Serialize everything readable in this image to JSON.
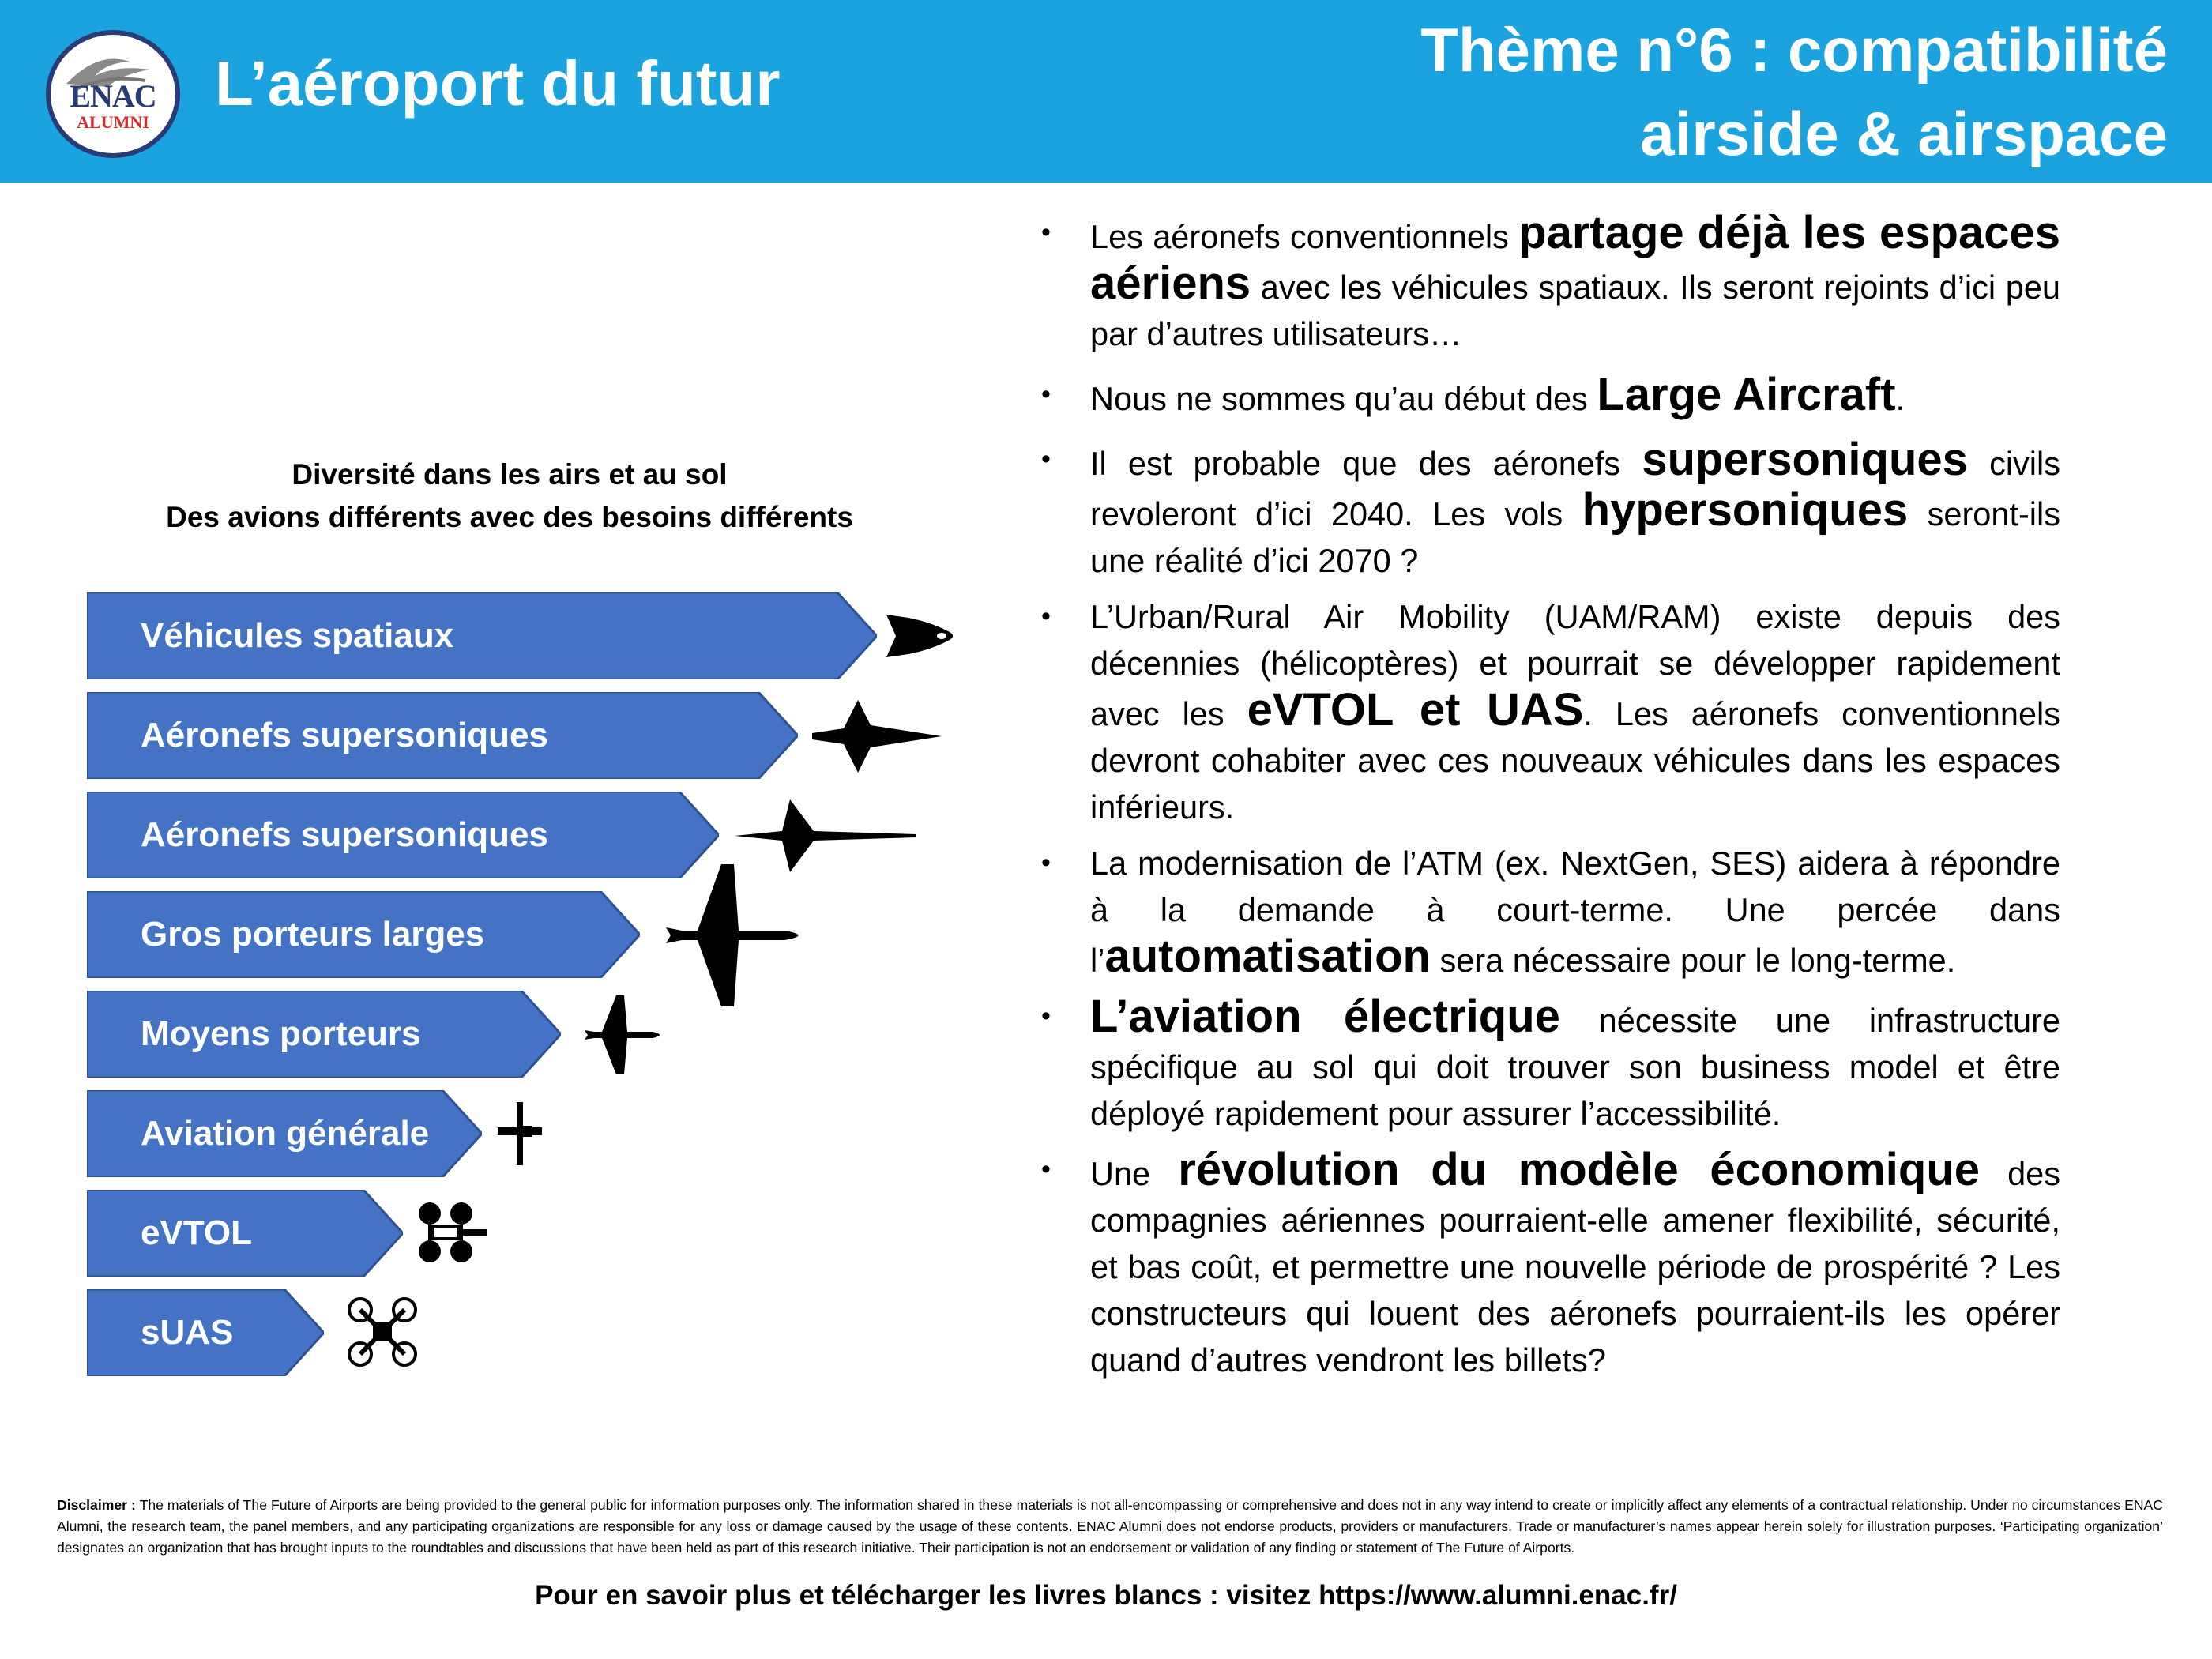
{
  "header": {
    "logo_main": "ENAC",
    "logo_sub": "ALUMNI",
    "site_title": "L’aéroport du futur",
    "theme_line1": "Thème n°6 : compatibilité",
    "theme_line2": "airside & airspace",
    "background_color": "#1aa3df"
  },
  "diagram": {
    "title_line1": "Diversité dans les airs et au sol",
    "title_line2": "Des avions différents avec des besoins différents",
    "arrow_color": "#4472c4",
    "items": [
      {
        "label": "Véhicules spatiaux",
        "icon": "space-shuttle-icon"
      },
      {
        "label": "Aéronefs supersoniques",
        "icon": "stealth-jet-icon"
      },
      {
        "label": "Aéronefs supersoniques",
        "icon": "concorde-icon"
      },
      {
        "label": "Gros porteurs larges",
        "icon": "widebody-airliner-icon"
      },
      {
        "label": "Moyens porteurs",
        "icon": "narrowbody-airliner-icon"
      },
      {
        "label": "Aviation générale",
        "icon": "light-aircraft-icon"
      },
      {
        "label": "eVTOL",
        "icon": "evtol-icon"
      },
      {
        "label": "sUAS",
        "icon": "drone-icon"
      }
    ]
  },
  "bullets": [
    {
      "before": "Les aéronefs conventionnels ",
      "bold": "partage déjà les espaces aériens",
      "after": " avec les véhicules spatiaux. Ils seront rejoints d’ici peu par d’autres utilisateurs…"
    },
    {
      "before": "Nous ne sommes qu’au début des ",
      "bold": "Large Aircraft",
      "after": "."
    },
    {
      "before": "Il est probable que des aéronefs ",
      "bold": "supersoniques",
      "after": " civils revoleront d’ici 2040. Les vols ",
      "bold2": "hypersoniques",
      "after2": " seront-ils une réalité d’ici 2070 ?"
    },
    {
      "before": "L’Urban/Rural Air Mobility (UAM/RAM) existe depuis des décennies (hélicoptères) et pourrait se développer rapidement avec les ",
      "bold": "eVTOL et UAS",
      "after": ". Les aéronefs conventionnels devront cohabiter avec ces nouveaux véhicules dans les espaces inférieurs."
    },
    {
      "before": "La modernisation de l’ATM (ex. NextGen, SES) aidera à répondre à la demande à court-terme. Une percée dans l’",
      "bold": "automatisation",
      "after": " sera nécessaire pour le long-terme."
    },
    {
      "before": " ",
      "bold": "L’aviation électrique",
      "after": " nécessite une infrastructure spécifique au sol qui doit trouver son business model et être déployé rapidement pour assurer l’accessibilité."
    },
    {
      "before": "Une ",
      "bold": "révolution du modèle économique",
      "after": " des compagnies aériennes pourraient-elle amener flexibilité, sécurité, et bas coût, et permettre une nouvelle période de prospérité ? Les constructeurs qui louent des aéronefs pourraient-ils les opérer quand d’autres vendront les billets?"
    }
  ],
  "disclaimer": {
    "label": "Disclaimer :",
    "text": " The materials of The Future of Airports are being provided to the general public for information purposes only. The information shared in these materials is not all-encompassing or comprehensive and does not in any way intend to create or implicitly affect any elements of a contractual relationship. Under no circumstances ENAC Alumni, the research team, the panel members, and any participating organizations are responsible for any loss or damage caused by the usage of these contents. ENAC Alumni does not endorse products, providers or manufacturers. Trade or manufacturer’s names appear herein solely for illustration purposes. ‘Participating organization’ designates an organization that has brought inputs to the roundtables and discussions that have been held as part of this research initiative. Their participation is not an endorsement or validation of any finding or statement of The Future of Airports."
  },
  "footer": {
    "text": "Pour en savoir plus et télécharger les livres blancs : visitez https://www.alumni.enac.fr/"
  }
}
